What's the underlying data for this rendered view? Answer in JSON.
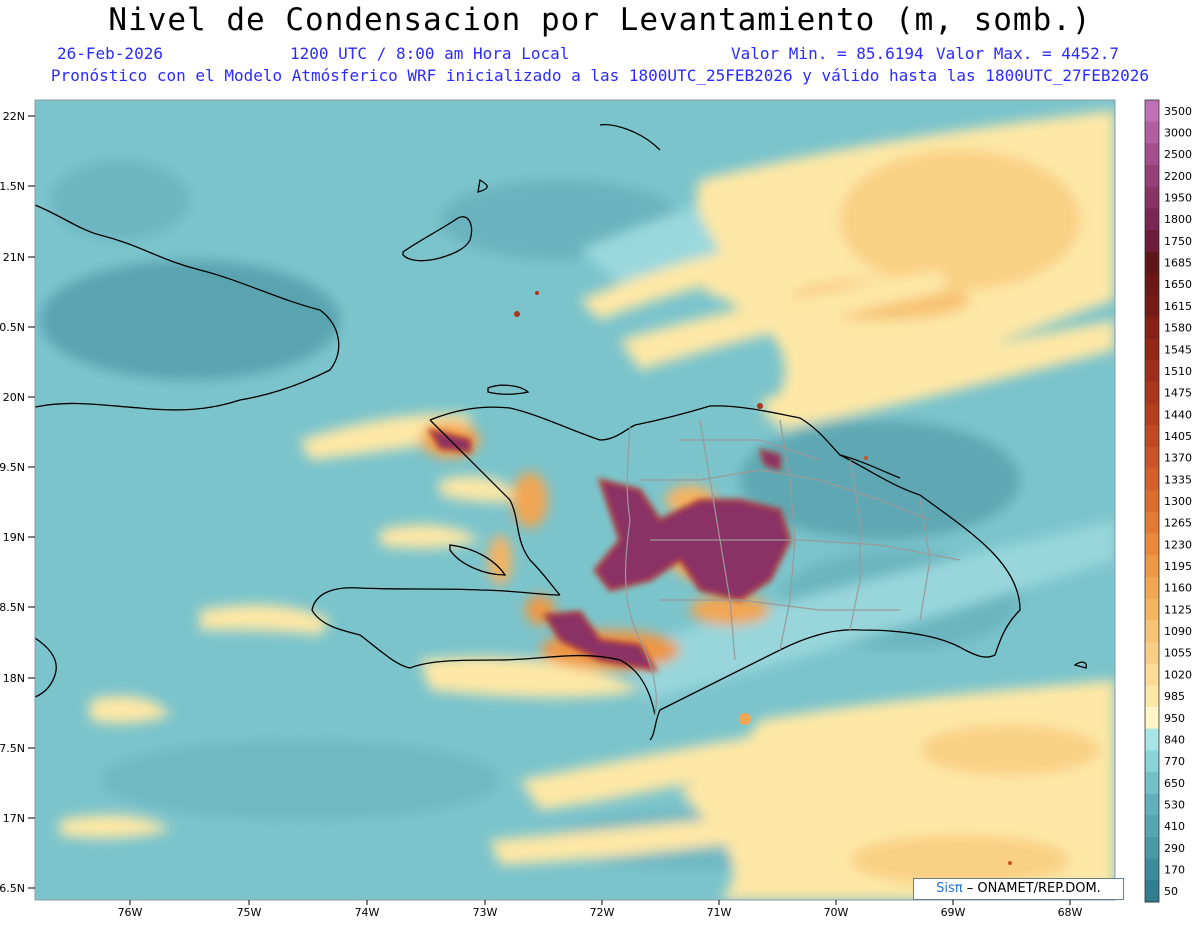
{
  "header": {
    "title": "Nivel de Condensacion por Levantamiento (m, somb.)",
    "date": "26-Feb-2026",
    "time": "1200 UTC / 8:00 am Hora Local",
    "min": "Valor Min. = 85.6194",
    "max": "Valor Max. = 4452.7",
    "model_line": "Pronóstico con el Modelo Atmósferico WRF inicializado a las 1800UTC_25FEB2026 y válido hasta las  1800UTC_27FEB2026"
  },
  "axes": {
    "lon_labels": [
      "76W",
      "75W",
      "74W",
      "73W",
      "72W",
      "71W",
      "70W",
      "69W",
      "68W"
    ],
    "lat_labels": [
      "22N",
      "1.5N",
      "21N",
      "0.5N",
      "20N",
      "9.5N",
      "19N",
      "8.5N",
      "18N",
      "7.5N",
      "17N",
      "6.5N"
    ]
  },
  "colorbar": {
    "levels": [
      "50",
      "170",
      "290",
      "410",
      "530",
      "650",
      "770",
      "840",
      "950",
      "985",
      "1020",
      "1055",
      "1090",
      "1125",
      "1160",
      "1195",
      "1230",
      "1265",
      "1300",
      "1335",
      "1370",
      "1405",
      "1440",
      "1475",
      "1510",
      "1545",
      "1580",
      "1615",
      "1650",
      "1685",
      "1750",
      "1800",
      "1950",
      "2200",
      "2500",
      "3000",
      "3500"
    ],
    "colors": [
      "#2f7d8e",
      "#3a8c9a",
      "#4899a6",
      "#55a5b1",
      "#62b0bb",
      "#73c0c8",
      "#89d3d9",
      "#a8e3e6",
      "#fff5c8",
      "#fde7a6",
      "#fbdb96",
      "#f9ce84",
      "#f7c273",
      "#f5b462",
      "#f1a653",
      "#ed9847",
      "#e8893d",
      "#e27b35",
      "#db6d2f",
      "#d3602b",
      "#c95427",
      "#bf4923",
      "#b43f20",
      "#a9361d",
      "#9e2e1b",
      "#92271a",
      "#852018",
      "#781a17",
      "#6c1616",
      "#5f1417",
      "#701b3a",
      "#7d2552",
      "#8a3266",
      "#983f7a",
      "#a64d8e",
      "#b35ea2",
      "#c070b5"
    ]
  },
  "credit": {
    "brand": "Sisπ",
    "text": "– ONAMET/REP.DOM."
  }
}
